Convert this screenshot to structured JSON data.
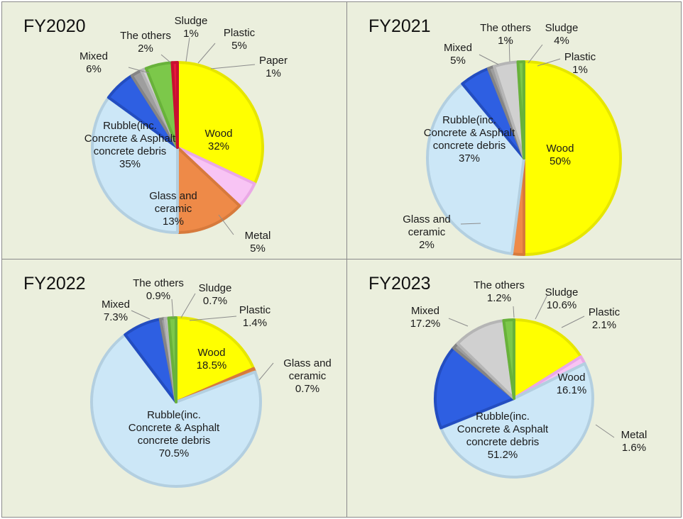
{
  "chart_data": [
    {
      "type": "pie",
      "title": "FY2020",
      "slices": [
        {
          "label": "Wood",
          "value": 32,
          "value_label": "32%",
          "color": "#ffff00",
          "edge": "#e6e600"
        },
        {
          "label": "Metal",
          "value": 5,
          "value_label": "5%",
          "color": "#f8c4f4",
          "edge": "#eaa8e6"
        },
        {
          "label": "Glass and ceramic",
          "value": 13,
          "value_label": "13%",
          "color": "#ee8a48",
          "edge": "#d77a3c"
        },
        {
          "label": "Rubble(inc. Concrete & Asphalt concrete debris",
          "value": 35,
          "value_label": "35%",
          "color": "#cce7f7",
          "edge": "#b3cfe0"
        },
        {
          "label": "Mixed",
          "value": 6,
          "value_label": "6%",
          "color": "#2e5fe2",
          "edge": "#234dc0"
        },
        {
          "label": "The others",
          "value": 2,
          "value_label": "2%",
          "color": "#9e9e9e",
          "edge": "#858585"
        },
        {
          "label": "Sludge",
          "value": 1,
          "value_label": "1%",
          "color": "#d0d0d0",
          "edge": "#b5b5b5"
        },
        {
          "label": "Plastic",
          "value": 5,
          "value_label": "5%",
          "color": "#7cc84a",
          "edge": "#68b23a"
        },
        {
          "label": "Paper",
          "value": 1,
          "value_label": "1%",
          "color": "#e8183c",
          "edge": "#c81030"
        }
      ]
    },
    {
      "type": "pie",
      "title": "FY2021",
      "slices": [
        {
          "label": "Wood",
          "value": 50,
          "value_label": "50%",
          "color": "#ffff00",
          "edge": "#e6e600"
        },
        {
          "label": "Glass and ceramic",
          "value": 2,
          "value_label": "2%",
          "color": "#ee8a48",
          "edge": "#d77a3c"
        },
        {
          "label": "Rubble(inc. Concrete & Asphalt concrete debris",
          "value": 37,
          "value_label": "37%",
          "color": "#cce7f7",
          "edge": "#b3cfe0"
        },
        {
          "label": "Mixed",
          "value": 5,
          "value_label": "5%",
          "color": "#2e5fe2",
          "edge": "#234dc0"
        },
        {
          "label": "The others",
          "value": 1,
          "value_label": "1%",
          "color": "#9e9e9e",
          "edge": "#858585"
        },
        {
          "label": "Sludge",
          "value": 4,
          "value_label": "4%",
          "color": "#d0d0d0",
          "edge": "#b5b5b5"
        },
        {
          "label": "Plastic",
          "value": 1,
          "value_label": "1%",
          "color": "#7cc84a",
          "edge": "#68b23a"
        }
      ]
    },
    {
      "type": "pie",
      "title": "FY2022",
      "slices": [
        {
          "label": "Wood",
          "value": 18.5,
          "value_label": "18.5%",
          "color": "#ffff00",
          "edge": "#e6e600"
        },
        {
          "label": "Glass and ceramic",
          "value": 0.7,
          "value_label": "0.7%",
          "color": "#ee8a48",
          "edge": "#d77a3c"
        },
        {
          "label": "Rubble(inc. Concrete & Asphalt concrete debris",
          "value": 70.5,
          "value_label": "70.5%",
          "color": "#cce7f7",
          "edge": "#b3cfe0"
        },
        {
          "label": "Mixed",
          "value": 7.3,
          "value_label": "7.3%",
          "color": "#2e5fe2",
          "edge": "#234dc0"
        },
        {
          "label": "The others",
          "value": 0.9,
          "value_label": "0.9%",
          "color": "#9e9e9e",
          "edge": "#858585"
        },
        {
          "label": "Sludge",
          "value": 0.7,
          "value_label": "0.7%",
          "color": "#d0d0d0",
          "edge": "#b5b5b5"
        },
        {
          "label": "Plastic",
          "value": 1.4,
          "value_label": "1.4%",
          "color": "#7cc84a",
          "edge": "#68b23a"
        }
      ]
    },
    {
      "type": "pie",
      "title": "FY2023",
      "slices": [
        {
          "label": "Wood",
          "value": 16.1,
          "value_label": "16.1%",
          "color": "#ffff00",
          "edge": "#e6e600"
        },
        {
          "label": "Metal",
          "value": 1.6,
          "value_label": "1.6%",
          "color": "#f8c4f4",
          "edge": "#eaa8e6"
        },
        {
          "label": "Rubble(inc. Concrete & Asphalt concrete debris",
          "value": 51.2,
          "value_label": "51.2%",
          "color": "#cce7f7",
          "edge": "#b3cfe0"
        },
        {
          "label": "Mixed",
          "value": 17.2,
          "value_label": "17.2%",
          "color": "#2e5fe2",
          "edge": "#234dc0"
        },
        {
          "label": "The others",
          "value": 1.2,
          "value_label": "1.2%",
          "color": "#9e9e9e",
          "edge": "#858585"
        },
        {
          "label": "Sludge",
          "value": 10.6,
          "value_label": "10.6%",
          "color": "#d0d0d0",
          "edge": "#b5b5b5"
        },
        {
          "label": "Plastic",
          "value": 2.1,
          "value_label": "2.1%",
          "color": "#7cc84a",
          "edge": "#68b23a"
        }
      ]
    }
  ]
}
